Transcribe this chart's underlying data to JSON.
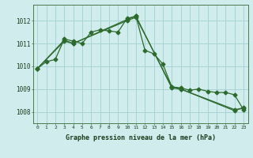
{
  "hours": [
    0,
    1,
    2,
    3,
    4,
    5,
    6,
    7,
    8,
    9,
    10,
    11,
    12,
    13,
    14,
    15,
    16,
    17,
    18,
    19,
    20,
    21,
    22,
    23
  ],
  "line1": [
    1009.9,
    1010.2,
    1010.3,
    1011.2,
    1011.1,
    1011.0,
    1011.5,
    1011.6,
    1011.55,
    1011.5,
    1012.1,
    1012.2,
    1010.7,
    1010.55,
    1010.1,
    1009.1,
    1009.05,
    1008.95,
    1009.0,
    1008.9,
    1008.85,
    1008.85,
    1008.75,
    1008.1
  ],
  "line2_x": [
    0,
    3,
    4,
    10,
    11,
    15,
    16,
    22,
    23
  ],
  "line2_y": [
    1009.9,
    1011.15,
    1011.0,
    1012.05,
    1012.2,
    1009.05,
    1009.0,
    1008.05,
    1008.2
  ],
  "line3_x": [
    0,
    3,
    4,
    10,
    11,
    15,
    16,
    22,
    23
  ],
  "line3_y": [
    1009.9,
    1011.1,
    1011.0,
    1012.0,
    1012.15,
    1009.1,
    1009.0,
    1008.1,
    1008.15
  ],
  "line_color": "#2d6a2d",
  "bg_color": "#d0ecec",
  "grid_color": "#a8d4d4",
  "xlabel": "Graphe pression niveau de la mer (hPa)",
  "ylim": [
    1007.5,
    1012.7
  ],
  "xlim": [
    -0.5,
    23.5
  ],
  "yticks": [
    1008,
    1009,
    1010,
    1011,
    1012
  ],
  "xticks": [
    0,
    1,
    2,
    3,
    4,
    5,
    6,
    7,
    8,
    9,
    10,
    11,
    12,
    13,
    14,
    15,
    16,
    17,
    18,
    19,
    20,
    21,
    22,
    23
  ],
  "marker": "D",
  "markersize": 2.5,
  "linewidth": 0.9
}
